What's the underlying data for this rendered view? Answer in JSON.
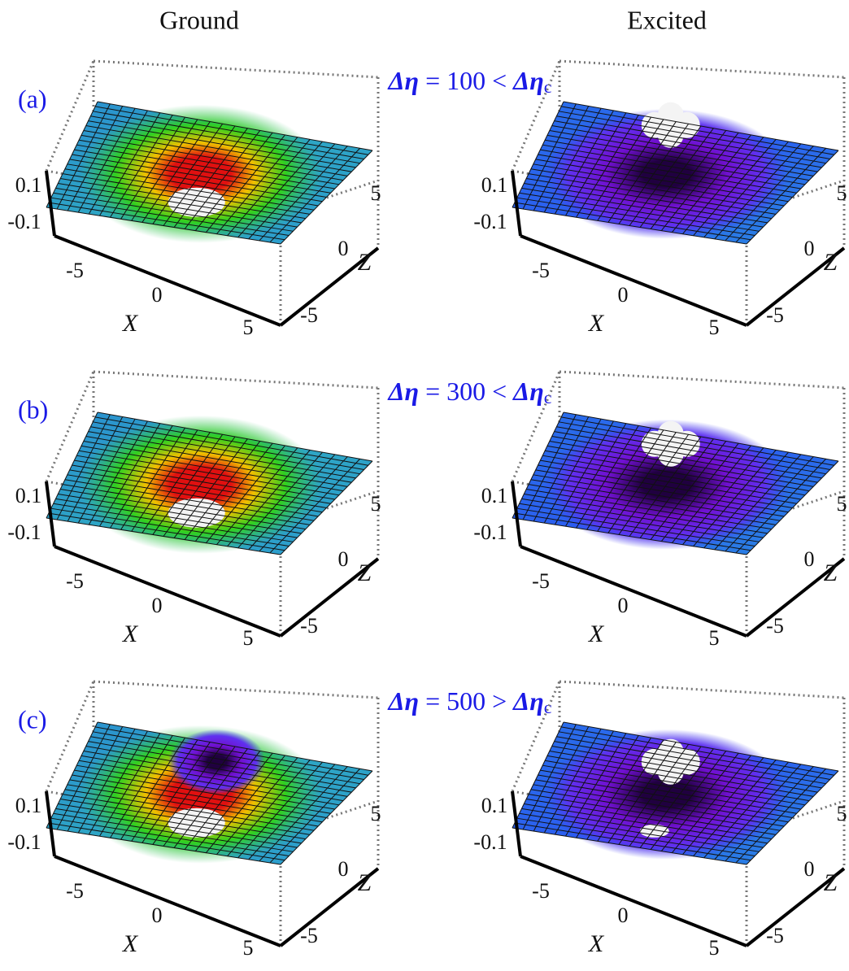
{
  "columns": [
    "Ground",
    "Excited"
  ],
  "rows": [
    {
      "label": "(a)",
      "condition": {
        "lhs": "Δη",
        "middle": " = 100 < ",
        "rhs": "Δη",
        "sub": "c"
      },
      "panels": [
        {
          "y_ticks": [
            "0.1",
            "-0.1"
          ],
          "x_ticks": [
            "-5",
            "0",
            "5"
          ],
          "x_label": "X",
          "z_ticks": [
            "5",
            "0",
            "-5"
          ],
          "z_label": "Z"
        },
        {
          "y_ticks": [
            "0.1",
            "-0.1"
          ],
          "x_ticks": [
            "-5",
            "0",
            "5"
          ],
          "x_label": "X",
          "z_ticks": [
            "5",
            "0",
            "-5"
          ],
          "z_label": "Z"
        }
      ]
    },
    {
      "label": "(b)",
      "condition": {
        "lhs": "Δη",
        "middle": " = 300 < ",
        "rhs": "Δη",
        "sub": "c"
      },
      "panels": [
        {
          "y_ticks": [
            "0.1",
            "-0.1"
          ],
          "x_ticks": [
            "-5",
            "0",
            "5"
          ],
          "x_label": "X",
          "z_ticks": [
            "5",
            "0",
            "-5"
          ],
          "z_label": "Z"
        },
        {
          "y_ticks": [
            "0.1",
            "-0.1"
          ],
          "x_ticks": [
            "-5",
            "0",
            "5"
          ],
          "x_label": "X",
          "z_ticks": [
            "5",
            "0",
            "-5"
          ],
          "z_label": "Z"
        }
      ]
    },
    {
      "label": "(c)",
      "condition": {
        "lhs": "Δη",
        "middle": " = 500 > ",
        "rhs": "Δη",
        "sub": "c"
      },
      "panels": [
        {
          "y_ticks": [
            "0.1",
            "-0.1"
          ],
          "x_ticks": [
            "-5",
            "0",
            "5"
          ],
          "x_label": "X",
          "z_ticks": [
            "5",
            "0",
            "-5"
          ],
          "z_label": "Z"
        },
        {
          "y_ticks": [
            "0.1",
            "-0.1"
          ],
          "x_ticks": [
            "-5",
            "0",
            "5"
          ],
          "x_label": "X",
          "z_ticks": [
            "5",
            "0",
            "-5"
          ],
          "z_label": "Z"
        }
      ]
    }
  ]
}
